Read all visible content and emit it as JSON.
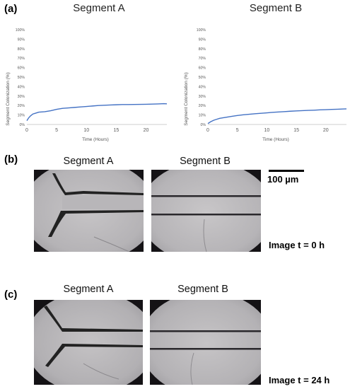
{
  "figure": {
    "panels": {
      "a": {
        "label": "(a)"
      },
      "b": {
        "label": "(b)",
        "segment_a": "Segment A",
        "segment_b": "Segment B",
        "time_label": "Image t = 0 h"
      },
      "c": {
        "label": "(c)",
        "segment_a": "Segment A",
        "segment_b": "Segment B",
        "time_label": "Image t = 24 h"
      }
    },
    "scale_bar": {
      "label": "100 µm"
    }
  },
  "chart_data": [
    {
      "type": "line",
      "title": "Segment A",
      "xlabel": "Time (Hours)",
      "ylabel": "Segment Colonization (%)",
      "xlim": [
        0,
        23.5
      ],
      "ylim": [
        0,
        100
      ],
      "x_ticks": [
        "0",
        "5",
        "10",
        "15",
        "20"
      ],
      "y_ticks": [
        "0%",
        "10%",
        "20%",
        "30%",
        "40%",
        "50%",
        "60%",
        "70%",
        "80%",
        "90%",
        "100%"
      ],
      "grid": false,
      "series": [
        {
          "color": "#4472c4",
          "x": [
            0,
            0.3,
            0.6,
            1,
            1.5,
            2,
            3,
            4,
            5,
            6,
            7,
            8,
            9,
            10,
            11,
            12,
            13,
            14,
            15,
            16,
            17,
            18,
            19,
            20,
            21,
            22,
            23,
            23.5
          ],
          "y": [
            4,
            7,
            9,
            11,
            12,
            13,
            13.5,
            14.5,
            16,
            17,
            17.5,
            18,
            18.5,
            19,
            19.5,
            20,
            20.3,
            20.6,
            20.8,
            21,
            21,
            21.1,
            21.2,
            21.3,
            21.5,
            21.7,
            22,
            21.8
          ]
        }
      ]
    },
    {
      "type": "line",
      "title": "Segment B",
      "xlabel": "Time (Hours)",
      "ylabel": "Segment Colonization (%)",
      "xlim": [
        0,
        23.5
      ],
      "ylim": [
        0,
        100
      ],
      "x_ticks": [
        "0",
        "5",
        "10",
        "15",
        "20"
      ],
      "y_ticks": [
        "0%",
        "10%",
        "20%",
        "30%",
        "40%",
        "50%",
        "60%",
        "70%",
        "80%",
        "90%",
        "100%"
      ],
      "grid": false,
      "series": [
        {
          "color": "#4472c4",
          "x": [
            0,
            0.5,
            1,
            1.5,
            2,
            3,
            4,
            5,
            6,
            7,
            8,
            9,
            10,
            11,
            12,
            13,
            14,
            15,
            16,
            17,
            18,
            19,
            20,
            21,
            22,
            23,
            23.5
          ],
          "y": [
            1,
            3,
            4.5,
            5.5,
            6.5,
            7.5,
            8.5,
            9.5,
            10.2,
            10.8,
            11.3,
            11.8,
            12.3,
            12.8,
            13.2,
            13.6,
            14,
            14.3,
            14.6,
            14.9,
            15.1,
            15.4,
            15.6,
            15.9,
            16.1,
            16.4,
            16.5
          ]
        }
      ]
    }
  ]
}
